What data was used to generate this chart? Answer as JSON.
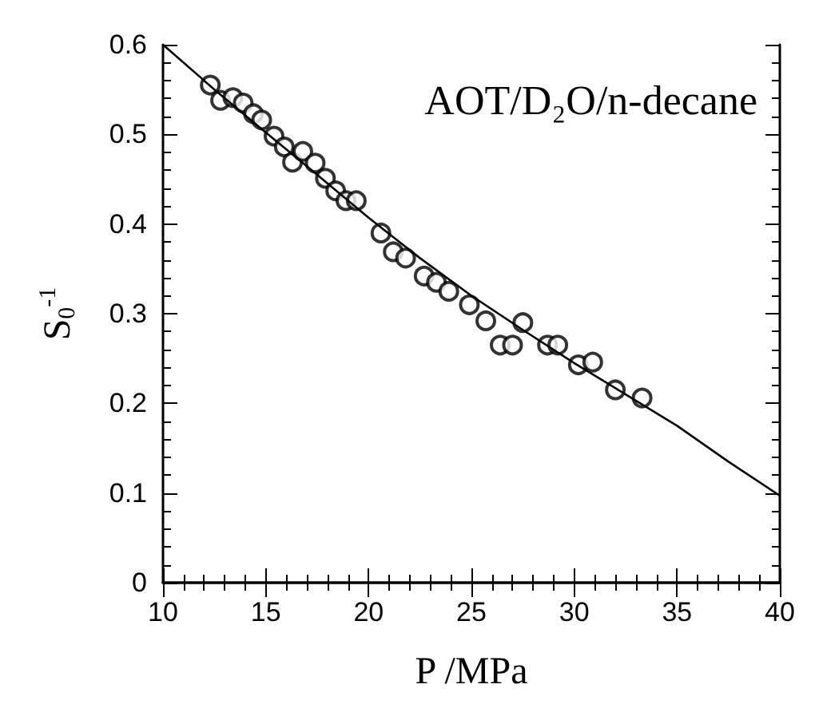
{
  "chart_data": {
    "type": "scatter",
    "xlabel": "P /MPa",
    "ylabel": "S$_{0}$$^{-1}$",
    "annotations": [
      "AOT/D₂O/n-decane"
    ],
    "xlim": [
      10,
      40
    ],
    "xticks": [
      10,
      15,
      20,
      25,
      30,
      35,
      40
    ],
    "ylim": [
      0,
      0.6
    ],
    "yticks": [
      0,
      0.1,
      0.2,
      0.3,
      0.4,
      0.5,
      0.6
    ],
    "grid": false,
    "marker": "circle",
    "series": [
      {
        "color": "#000000",
        "x": [
          12.3,
          12.8,
          13.4,
          13.9,
          14.4,
          14.8,
          15.4,
          15.9,
          16.3,
          16.8,
          17.4,
          17.9,
          18.4,
          18.9,
          19.4,
          20.6,
          21.2,
          21.8,
          22.7,
          23.3,
          23.9,
          24.9,
          25.7,
          26.4,
          27.0,
          27.5,
          28.7,
          29.2,
          30.2,
          30.9,
          32.0,
          33.3
        ],
        "values": [
          0.555,
          0.538,
          0.541,
          0.535,
          0.523,
          0.516,
          0.498,
          0.486,
          0.469,
          0.481,
          0.468,
          0.451,
          0.437,
          0.426,
          0.426,
          0.39,
          0.369,
          0.362,
          0.342,
          0.335,
          0.325,
          0.31,
          0.292,
          0.265,
          0.265,
          0.29,
          0.265,
          0.265,
          0.243,
          0.246,
          0.215,
          0.206
        ]
      },
      {
        "type": "line",
        "marker": "none",
        "line_style": "solid",
        "color": "#000000",
        "x": [
          10,
          12.5,
          15,
          17.5,
          20,
          22.5,
          25,
          27.5,
          30,
          32.5,
          35,
          37.5,
          40
        ],
        "values": [
          0.6,
          0.55,
          0.502,
          0.455,
          0.407,
          0.362,
          0.32,
          0.282,
          0.245,
          0.21,
          0.175,
          0.135,
          0.097
        ]
      }
    ]
  }
}
